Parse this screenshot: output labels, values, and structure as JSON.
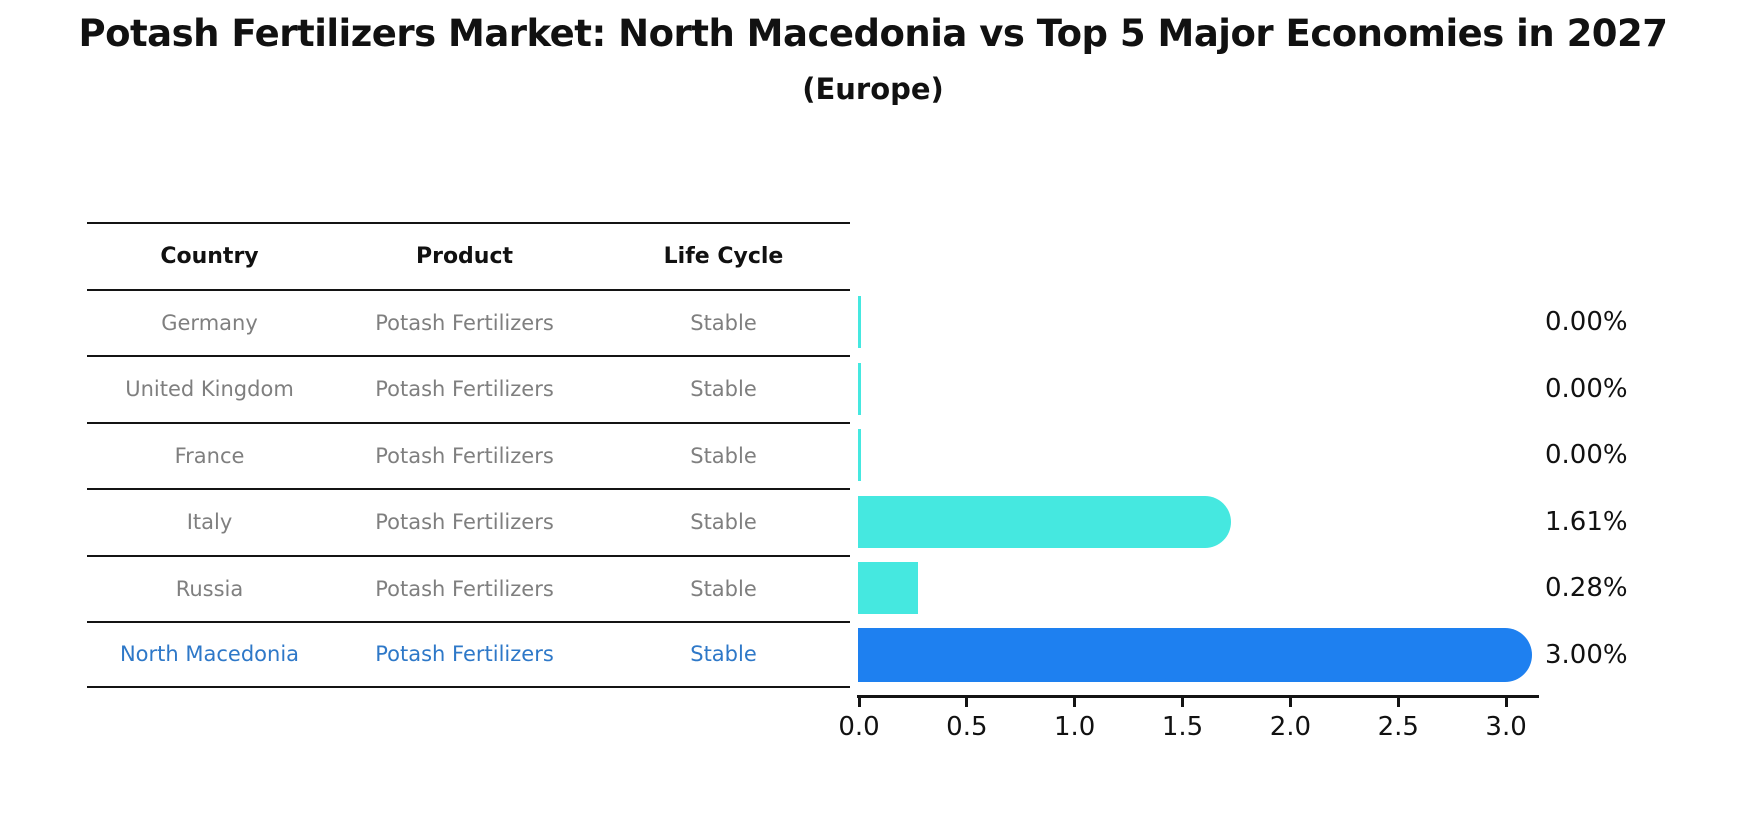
{
  "title": "Potash Fertilizers Market: North Macedonia vs Top 5 Major Economies in 2027",
  "subtitle": "(Europe)",
  "table": {
    "columns": [
      "Country",
      "Product",
      "Life Cycle"
    ],
    "rows": [
      {
        "country": "Germany",
        "product": "Potash Fertilizers",
        "life_cycle": "Stable",
        "highlighted": false
      },
      {
        "country": "United Kingdom",
        "product": "Potash Fertilizers",
        "life_cycle": "Stable",
        "highlighted": false
      },
      {
        "country": "France",
        "product": "Potash Fertilizers",
        "life_cycle": "Stable",
        "highlighted": false
      },
      {
        "country": "Italy",
        "product": "Potash Fertilizers",
        "life_cycle": "Stable",
        "highlighted": false
      },
      {
        "country": "Russia",
        "product": "Potash Fertilizers",
        "life_cycle": "Stable",
        "highlighted": false
      },
      {
        "country": "North Macedonia",
        "product": "Potash Fertilizers",
        "life_cycle": "Stable",
        "highlighted": true
      }
    ]
  },
  "chart_data": {
    "type": "bar",
    "orientation": "horizontal",
    "categories": [
      "Germany",
      "United Kingdom",
      "France",
      "Italy",
      "Russia",
      "North Macedonia"
    ],
    "values": [
      0.0,
      0.0,
      0.0,
      1.61,
      0.28,
      3.0
    ],
    "value_labels": [
      "0.00%",
      "0.00%",
      "0.00%",
      "1.61%",
      "0.28%",
      "3.00%"
    ],
    "x_ticks": [
      "0.0",
      "0.5",
      "1.0",
      "1.5",
      "2.0",
      "2.5",
      "3.0"
    ],
    "xlim": [
      0,
      3.16
    ],
    "grid": false,
    "legend": "none",
    "colors": {
      "bar_default": "#45e8e0",
      "bar_highlight": "#1e80f0",
      "highlight_text": "#2e78c8",
      "row_text": "#7f7f7f",
      "axis_text": "#111111"
    }
  }
}
